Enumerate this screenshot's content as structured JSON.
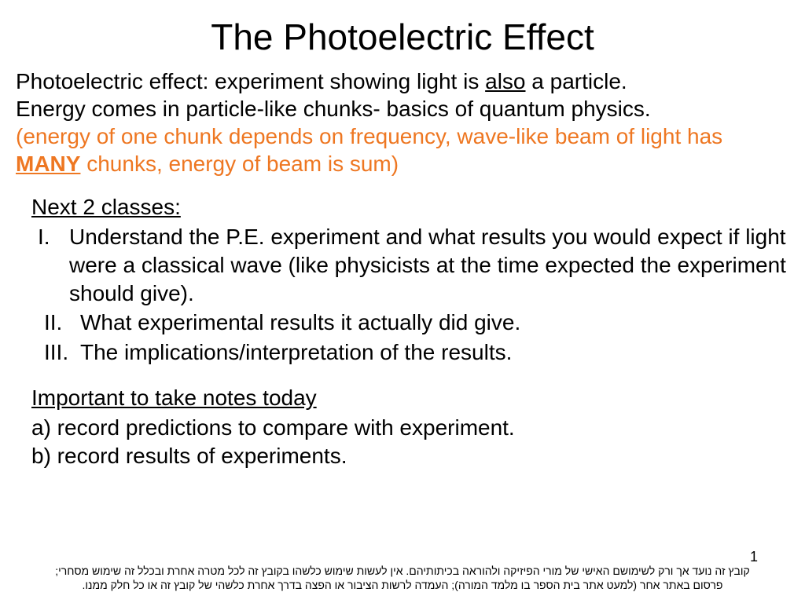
{
  "title": "The Photoelectric Effect",
  "intro": {
    "line1_pre": "Photoelectric effect: experiment showing light is ",
    "line1_also": "also",
    "line1_post": " a particle.",
    "line2": "Energy comes in particle-like chunks- basics of quantum physics.",
    "orange_pre": "(energy of one chunk depends on frequency, wave-like beam of light has ",
    "orange_many": "MANY",
    "orange_post": " chunks, energy of beam is sum)"
  },
  "next_heading": "Next 2 classes:",
  "roman": {
    "i_num": "I.",
    "i_text": "Understand the P.E. experiment and what results you would expect if light were a classical wave (like physicists at the time expected the experiment should give).",
    "ii_num": "II.",
    "ii_text": "What experimental results it actually did give.",
    "iii_num": "III.",
    "iii_text": "The implications/interpretation of the results."
  },
  "notes_heading": "Important to take notes today",
  "notes": {
    "a": "a) record predictions to compare with experiment.",
    "b": "b) record results of experiments."
  },
  "footer": "קובץ זה נועד אך ורק לשימושם האישי של מורי הפיזיקה ולהוראה בכיתותיהם. אין לעשות שימוש כלשהו בקובץ זה לכל מטרה אחרת ובכלל זה שימוש מסחרי; פרסום באתר אחר (למעט אתר בית הספר בו מלמד המורה); העמדה לרשות הציבור או הפצה בדרך אחרת כלשהי של קובץ זה או כל חלק ממנו.",
  "page_number": "1",
  "colors": {
    "accent": "#ee7722",
    "text": "#000000",
    "background": "#ffffff"
  },
  "typography": {
    "title_fontsize": 46,
    "body_fontsize": 28,
    "footer_fontsize": 14,
    "family": "Arial"
  }
}
